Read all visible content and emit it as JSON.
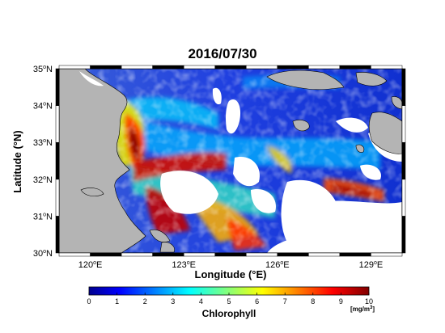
{
  "title": "2016/07/30",
  "x_axis": {
    "label": "Longitude (°E)",
    "ticks": [
      {
        "value": 120,
        "text": "120",
        "unit": "E"
      },
      {
        "value": 123,
        "text": "123",
        "unit": "E"
      },
      {
        "value": 126,
        "text": "126",
        "unit": "E"
      },
      {
        "value": 129,
        "text": "129",
        "unit": "E"
      }
    ],
    "range": [
      119,
      130
    ]
  },
  "y_axis": {
    "label": "Latitude (°N)",
    "ticks": [
      {
        "value": 35,
        "text": "35",
        "unit": "N"
      },
      {
        "value": 34,
        "text": "34",
        "unit": "N"
      },
      {
        "value": 33,
        "text": "33",
        "unit": "N"
      },
      {
        "value": 32,
        "text": "32",
        "unit": "N"
      },
      {
        "value": 31,
        "text": "31",
        "unit": "N"
      },
      {
        "value": 30,
        "text": "30",
        "unit": "N"
      }
    ],
    "range": [
      30,
      35
    ]
  },
  "colorbar": {
    "title": "Chlorophyll",
    "unit_text": "[mg/m",
    "unit_sup": "3",
    "unit_close": "]",
    "ticks": [
      "0",
      "1",
      "2",
      "3",
      "4",
      "5",
      "6",
      "7",
      "8",
      "9",
      "10"
    ],
    "range": [
      0,
      10
    ],
    "colormap": "jet"
  },
  "colors": {
    "land": "#b4b4b4",
    "cloud_nodata": "#ffffff",
    "low": "#0000a8",
    "mid": "#00e0ff",
    "high": "#8b0000"
  }
}
